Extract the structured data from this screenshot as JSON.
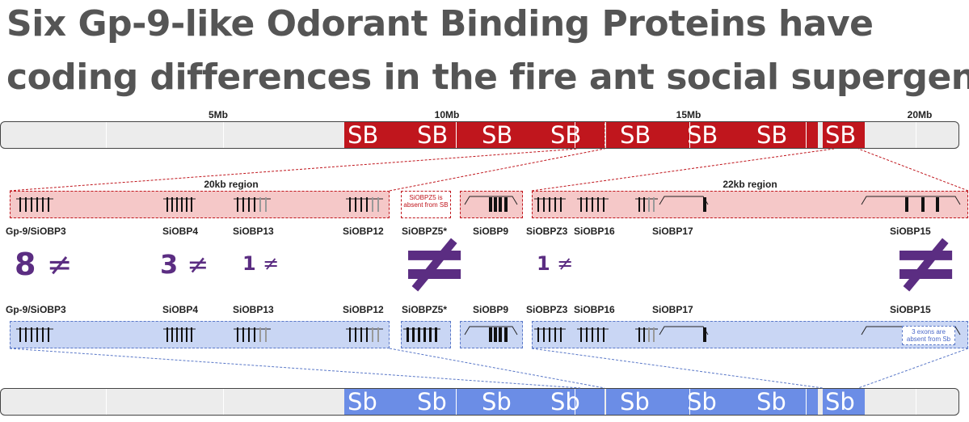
{
  "title": {
    "line1": "Six Gp-9-like Odorant Binding Proteins have",
    "line2": "coding differences in the fire ant social supergene"
  },
  "chromosome": {
    "ticks": [
      "5Mb",
      "10Mb",
      "15Mb",
      "20Mb"
    ],
    "sb_label": "SB",
    "sbs_label": "Sb",
    "sb_color": "#c0161d",
    "sbs_color": "#6b8de6"
  },
  "regions": {
    "left": "20kb region",
    "right": "22kb region"
  },
  "notes": {
    "sb_absent": "SiOBPZ5 is absent from SB",
    "exons_absent": "3 exons are absent from Sb"
  },
  "genes": [
    {
      "name": "Gp-9/SiOBP3",
      "count": "8",
      "symbol": "≠"
    },
    {
      "name": "SiOBP4",
      "count": "3",
      "symbol": "≠"
    },
    {
      "name": "SiOBP13",
      "count": "1",
      "symbol": "≠"
    },
    {
      "name": "SiOBP12",
      "count": "",
      "symbol": ""
    },
    {
      "name": "SiOBPZ5*",
      "count": "",
      "symbol": "≠"
    },
    {
      "name": "SiOBP9",
      "count": "",
      "symbol": ""
    },
    {
      "name": "SiOBPZ3",
      "count": "1",
      "symbol": "≠"
    },
    {
      "name": "SiOBP16",
      "count": "",
      "symbol": ""
    },
    {
      "name": "SiOBP17",
      "count": "",
      "symbol": ""
    },
    {
      "name": "SiOBP15",
      "count": "",
      "symbol": "≠"
    }
  ]
}
